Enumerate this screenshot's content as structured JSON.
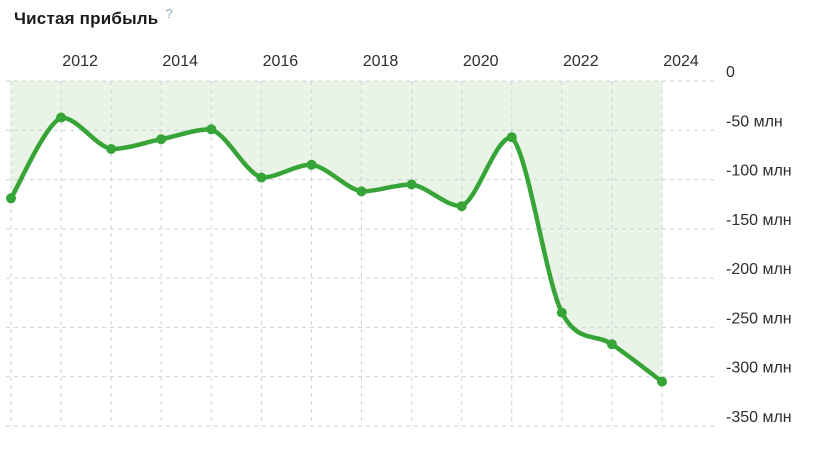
{
  "header": {
    "title": "Чистая прибыль",
    "help_icon": "?"
  },
  "chart_data": {
    "type": "line",
    "title": "Чистая прибыль",
    "unit": "млн",
    "x": [
      2011,
      2012,
      2013,
      2014,
      2015,
      2016,
      2017,
      2018,
      2019,
      2020,
      2021,
      2022,
      2023,
      2024
    ],
    "values": [
      -119,
      -37,
      -69,
      -59,
      -49,
      -98,
      -85,
      -112,
      -105,
      -127,
      -57,
      -235,
      -267,
      -305
    ],
    "x_ticks": [
      "2012",
      "2014",
      "2016",
      "2018",
      "2020",
      "2022",
      "2024"
    ],
    "y_ticks": [
      {
        "value": 0,
        "label": "0"
      },
      {
        "value": -50,
        "label": "-50 млн"
      },
      {
        "value": -100,
        "label": "-100 млн"
      },
      {
        "value": -150,
        "label": "-150 млн"
      },
      {
        "value": -200,
        "label": "-200 млн"
      },
      {
        "value": -250,
        "label": "-250 млн"
      },
      {
        "value": -300,
        "label": "-300 млн"
      },
      {
        "value": -350,
        "label": "-350 млн"
      }
    ],
    "ylim": [
      -350,
      0
    ],
    "grid": "dashed",
    "legend": "none",
    "colors": {
      "line": "#36a436",
      "fill": "#e9f3e6",
      "grid": "#ccd3da",
      "text": "#2e2e2e",
      "help": "#8fa5c5"
    }
  }
}
